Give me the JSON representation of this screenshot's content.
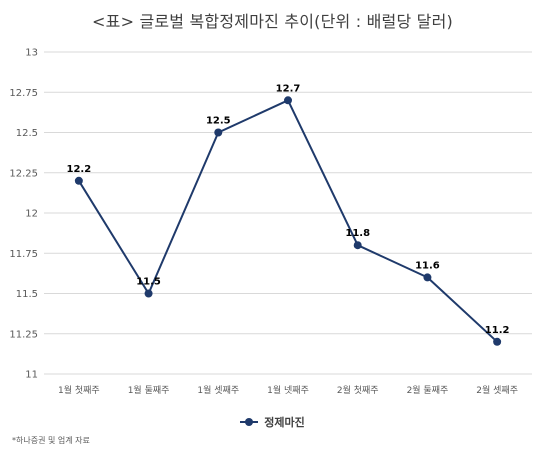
{
  "title": "<표> 글로벌 복합정제마진 추이(단위 : 배럴당 달러)",
  "source": "*하나증권 및 업계 자료",
  "colors": {
    "line": "#1f3a6b",
    "grid": "#d9d9d9",
    "axis_text": "#595959",
    "label_text": "#000000"
  },
  "chart_data": {
    "type": "line",
    "title": "<표> 글로벌 복합정제마진 추이(단위 : 배럴당 달러)",
    "categories": [
      "1월 첫째주",
      "1월 둘째주",
      "1월 셋째주",
      "1월 넷째주",
      "2월 첫째주",
      "2월 둘째주",
      "2월 셋째주"
    ],
    "series": [
      {
        "name": "정제마진",
        "values": [
          12.2,
          11.5,
          12.5,
          12.7,
          11.8,
          11.6,
          11.2
        ]
      }
    ],
    "data_labels": [
      "12.2",
      "11.5",
      "12.5",
      "12.7",
      "11.8",
      "11.6",
      "11.2"
    ],
    "ylim": [
      11,
      13
    ],
    "y_ticks": [
      11,
      11.25,
      11.5,
      11.75,
      12,
      12.25,
      12.5,
      12.75,
      13
    ],
    "y_tick_labels": [
      "11",
      "11.25",
      "11.5",
      "11.75",
      "12",
      "12.25",
      "12.5",
      "12.75",
      "13"
    ],
    "grid": true,
    "legend": "bottom"
  }
}
